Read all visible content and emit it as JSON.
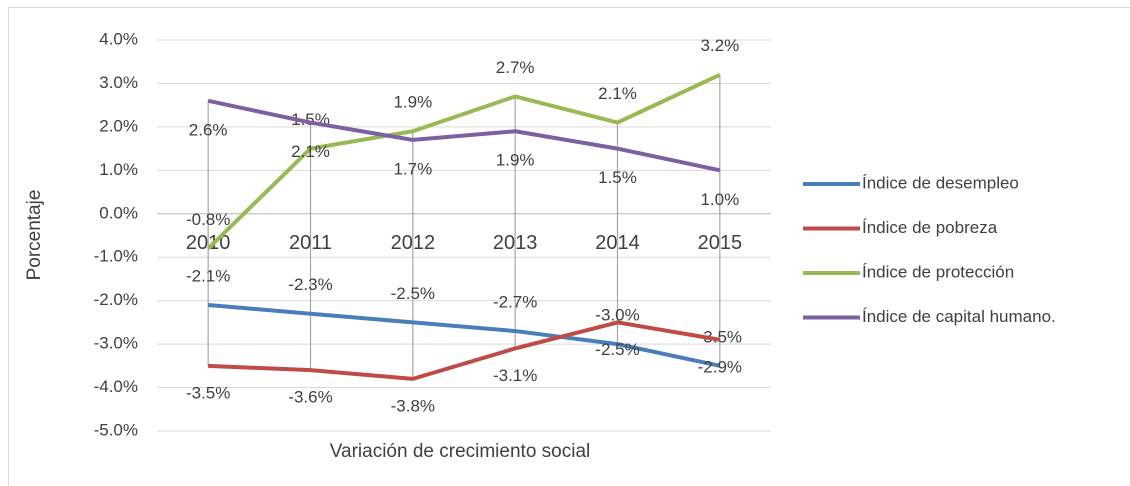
{
  "chart_data": {
    "type": "line",
    "x_label": "Variación de crecimiento social",
    "y_label": "Porcentaje",
    "categories": [
      "2010",
      "2011",
      "2012",
      "2013",
      "2014",
      "2015"
    ],
    "series": [
      {
        "name": "Índice de desempleo",
        "color": "#4a7ebb",
        "values": [
          -2.1,
          -2.3,
          -2.5,
          -2.7,
          -3.0,
          -3.5
        ],
        "value_labels": [
          "-2.1%",
          "-2.3%",
          "-2.5%",
          "-2.7%",
          "-3.0%",
          "-3.5%"
        ]
      },
      {
        "name": "Índice de pobreza",
        "color": "#be4b48",
        "values": [
          -3.5,
          -3.6,
          -3.8,
          -3.1,
          -2.5,
          -2.9
        ],
        "value_labels": [
          "-3.5%",
          "-3.6%",
          "-3.8%",
          "-3.1%",
          "-2.5%",
          "-2.9%"
        ]
      },
      {
        "name": "Índice de protección",
        "color": "#98b954",
        "values": [
          -0.8,
          1.5,
          1.9,
          2.7,
          2.1,
          3.2
        ],
        "value_labels": [
          "-0.8%",
          "1.5%",
          "1.9%",
          "2.7%",
          "2.1%",
          "3.2%"
        ]
      },
      {
        "name": "Índice de capital humano.",
        "color": "#7d60a0",
        "values": [
          2.6,
          2.1,
          1.7,
          1.9,
          1.5,
          1.0
        ],
        "value_labels": [
          "2.6%",
          "2.1%",
          "1.7%",
          "1.9%",
          "1.5%",
          "1.0%"
        ]
      }
    ],
    "ylim": [
      -5,
      4
    ],
    "yticks": [
      {
        "value": 4,
        "label": "4.0%"
      },
      {
        "value": 3,
        "label": "3.0%"
      },
      {
        "value": 2,
        "label": "2.0%"
      },
      {
        "value": 1,
        "label": "1.0%"
      },
      {
        "value": 0,
        "label": "0.0%"
      },
      {
        "value": -1,
        "label": "-1.0%"
      },
      {
        "value": -2,
        "label": "-2.0%"
      },
      {
        "value": -3,
        "label": "-3.0%"
      },
      {
        "value": -4,
        "label": "-4.0%"
      },
      {
        "value": -5,
        "label": "-5.0%"
      }
    ],
    "grid": true,
    "legend": "right"
  }
}
